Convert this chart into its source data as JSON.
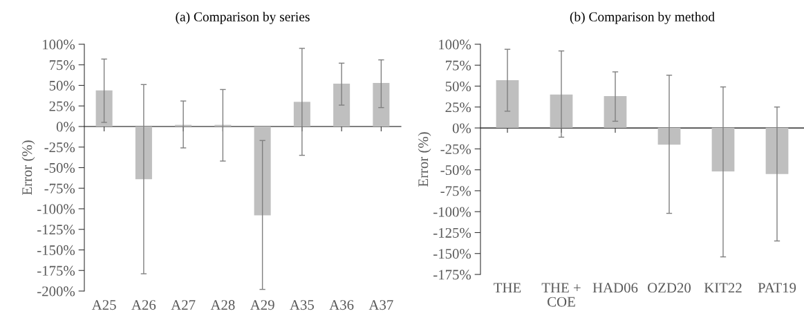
{
  "chart_data": [
    {
      "type": "bar",
      "title": "(a) Comparison by series",
      "ylabel": "Error (%)",
      "categories": [
        "A25",
        "A26",
        "A27",
        "A28",
        "A29",
        "A35",
        "A36",
        "A37"
      ],
      "values": [
        44,
        -64,
        2,
        2,
        -108,
        30,
        52,
        53
      ],
      "errors": [
        [
          5,
          82
        ],
        [
          -179,
          51
        ],
        [
          -26,
          31
        ],
        [
          -42,
          45
        ],
        [
          -198,
          -17
        ],
        [
          -35,
          95
        ],
        [
          26,
          77
        ],
        [
          23,
          81
        ]
      ],
      "color": "#bfbfbf",
      "ylim": [
        -200,
        100
      ],
      "yticks": [
        {
          "value": -200,
          "label": "-200%"
        },
        {
          "value": -175,
          "label": "-175%"
        },
        {
          "value": -150,
          "label": "-150%"
        },
        {
          "value": -125,
          "label": "-125%"
        },
        {
          "value": -100,
          "label": "-100%"
        },
        {
          "value": -75,
          "label": "-75%"
        },
        {
          "value": -50,
          "label": "-50%"
        },
        {
          "value": -25,
          "label": "-25%"
        },
        {
          "value": 0,
          "label": "0%"
        },
        {
          "value": 25,
          "label": "25%"
        },
        {
          "value": 50,
          "label": "50%"
        },
        {
          "value": 75,
          "label": "75%"
        },
        {
          "value": 100,
          "label": "100%"
        }
      ],
      "grid": false,
      "legend": false
    },
    {
      "type": "bar",
      "title": "(b) Comparison by method",
      "ylabel": "Error (%)",
      "categories": [
        "THE",
        "THE +\nCOE",
        "HAD06",
        "OZD20",
        "KIT22",
        "PAT19"
      ],
      "values": [
        57,
        40,
        38,
        -20,
        -52,
        -55
      ],
      "errors": [
        [
          20,
          94
        ],
        [
          -11,
          92
        ],
        [
          8,
          67
        ],
        [
          -102,
          63
        ],
        [
          -154,
          49
        ],
        [
          -135,
          25
        ]
      ],
      "color": "#bfbfbf",
      "ylim": [
        -175,
        100
      ],
      "yticks": [
        {
          "value": -175,
          "label": "-175%"
        },
        {
          "value": -150,
          "label": "-150%"
        },
        {
          "value": -125,
          "label": "-125%"
        },
        {
          "value": -100,
          "label": "-100%"
        },
        {
          "value": -75,
          "label": "-75%"
        },
        {
          "value": -50,
          "label": "-50%"
        },
        {
          "value": -25,
          "label": "-25%"
        },
        {
          "value": 0,
          "label": "0%"
        },
        {
          "value": 25,
          "label": "25%"
        },
        {
          "value": 50,
          "label": "50%"
        },
        {
          "value": 75,
          "label": "75%"
        },
        {
          "value": 100,
          "label": "100%"
        }
      ],
      "grid": false,
      "legend": false
    }
  ]
}
